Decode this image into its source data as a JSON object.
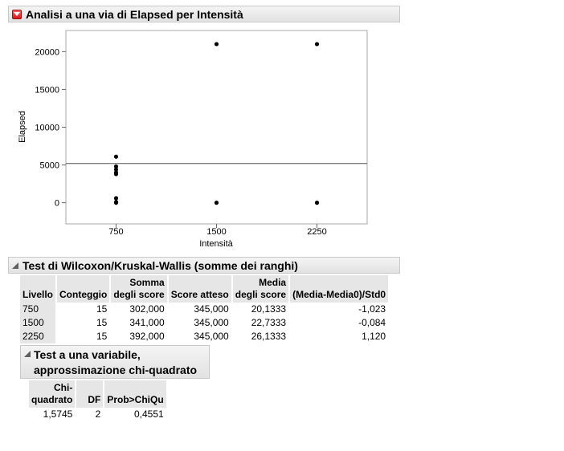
{
  "oneway": {
    "title": "Analisi a una via di Elapsed per Intensità"
  },
  "chart_data": {
    "type": "scatter",
    "title": "",
    "xlabel": "Intensità",
    "ylabel": "Elapsed",
    "categories": [
      "750",
      "1500",
      "2250"
    ],
    "yticks": [
      "0",
      "5000",
      "10000",
      "15000",
      "20000"
    ],
    "ylim": [
      -2800,
      22800
    ],
    "grand_mean": 5200,
    "points": [
      {
        "x": "750",
        "y": 6100
      },
      {
        "x": "750",
        "y": 4800
      },
      {
        "x": "750",
        "y": 4400
      },
      {
        "x": "750",
        "y": 4000
      },
      {
        "x": "750",
        "y": 3800
      },
      {
        "x": "750",
        "y": 600
      },
      {
        "x": "750",
        "y": 100
      },
      {
        "x": "750",
        "y": 0
      },
      {
        "x": "1500",
        "y": 21000
      },
      {
        "x": "1500",
        "y": 0
      },
      {
        "x": "2250",
        "y": 21000
      },
      {
        "x": "2250",
        "y": 0
      }
    ],
    "grid": false
  },
  "wilcoxon": {
    "title": "Test di Wilcoxon/Kruskal-Wallis (somme dei ranghi)",
    "headers": {
      "livello": "Livello",
      "conteggio": "Conteggio",
      "somma_1": "Somma",
      "somma_2": "degli score",
      "atteso": "Score atteso",
      "media_1": "Media",
      "media_2": "degli score",
      "std": "(Media-Media0)/Std0"
    },
    "rows": [
      {
        "livello": "750",
        "conteggio": "15",
        "somma": "302,000",
        "atteso": "345,000",
        "media": "20,1333",
        "std": "-1,023"
      },
      {
        "livello": "1500",
        "conteggio": "15",
        "somma": "341,000",
        "atteso": "345,000",
        "media": "22,7333",
        "std": "-0,084"
      },
      {
        "livello": "2250",
        "conteggio": "15",
        "somma": "392,000",
        "atteso": "345,000",
        "media": "26,1333",
        "std": "1,120"
      }
    ]
  },
  "chisq": {
    "title_1": "Test a una variabile,",
    "title_2": "approssimazione chi-quadrato",
    "headers": {
      "chi_1": "Chi-",
      "chi_2": "quadrato",
      "df": "DF",
      "prob": "Prob>ChiQu"
    },
    "values": {
      "chi": "1,5745",
      "df": "2",
      "prob": "0,4551"
    }
  },
  "colors": {
    "header_bg": "#e8e8e8",
    "disclosure_red": "#d01818",
    "mean_line": "#555555"
  }
}
